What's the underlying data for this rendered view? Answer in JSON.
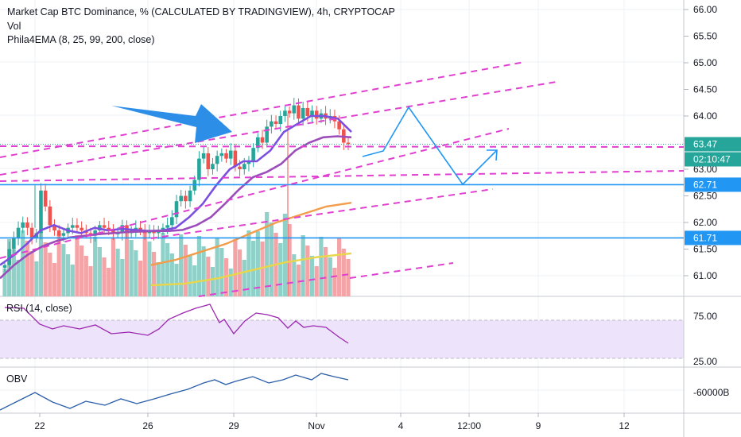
{
  "header": {
    "title": "Market Cap BTC Dominance, % (CALCULATED BY TRADINGVIEW), 4h, CRYPTOCAP",
    "vol_label": "Vol",
    "ema_label": "Phila4EMA (8, 25, 99, 200, close)"
  },
  "panes": {
    "rsi_label": "RSI (14, close)",
    "obv_label": "OBV"
  },
  "price_scale": {
    "ticks": [
      "66.00",
      "65.50",
      "65.00",
      "64.50",
      "64.00",
      "63.00",
      "62.50",
      "62.00",
      "61.50",
      "61.00"
    ],
    "tags": [
      {
        "label": "63.47",
        "color": "#26a69a"
      },
      {
        "label": "02:10:47",
        "color": "#26a69a"
      },
      {
        "label": "62.71",
        "color": "#2196f3"
      },
      {
        "label": "61.71",
        "color": "#2196f3"
      }
    ]
  },
  "rsi_scale": {
    "ticks": [
      "75.00",
      "25.00"
    ]
  },
  "obv_scale": {
    "ticks": [
      "-60000B"
    ]
  },
  "time_axis": {
    "ticks": [
      "22",
      "26",
      "29",
      "Nov",
      "4",
      "12:00",
      "9",
      "12"
    ]
  },
  "chart_data": {
    "type": "candlestick",
    "timeframe": "4h",
    "symbol": "CRYPTOCAP",
    "price_range": [
      60.75,
      66.15
    ],
    "close_series": [
      61.2,
      61.5,
      61.7,
      61.9,
      62.0,
      61.9,
      61.7,
      61.8,
      62.6,
      62.3,
      61.95,
      61.85,
      61.75,
      61.8,
      61.9,
      61.95,
      61.9,
      61.85,
      61.8,
      61.75,
      61.85,
      61.95,
      61.9,
      61.85,
      61.8,
      61.8,
      61.95,
      61.8,
      61.85,
      61.9,
      61.85,
      61.8,
      61.85,
      61.8,
      61.85,
      61.9,
      61.95,
      62.1,
      62.4,
      62.5,
      62.4,
      62.6,
      62.8,
      63.2,
      63.3,
      63.0,
      63.1,
      63.25,
      63.3,
      63.2,
      63.35,
      63.05,
      63.0,
      63.1,
      63.15,
      63.4,
      63.6,
      63.5,
      63.8,
      63.9,
      63.85,
      64.0,
      64.1,
      64.05,
      64.2,
      63.95,
      64.15,
      64.0,
      64.1,
      63.95,
      64.05,
      63.95,
      64.0,
      63.9,
      63.75,
      63.5,
      63.47
    ],
    "emas": [
      {
        "period": 8,
        "color": "#7b4fe0",
        "values": [
          61.2,
          61.38,
          61.6,
          61.85,
          61.95,
          61.85,
          61.8,
          61.9,
          61.85,
          61.88,
          61.86,
          61.84,
          61.85,
          61.9,
          62.1,
          62.35,
          62.7,
          63.0,
          63.15,
          63.15,
          63.35,
          63.7,
          63.85,
          64.0,
          64.0,
          63.95,
          63.7
        ]
      },
      {
        "period": 25,
        "color": "#9c4dba",
        "values": [
          60.95,
          61.2,
          61.4,
          61.55,
          61.65,
          61.72,
          61.75,
          61.78,
          61.8,
          61.82,
          61.83,
          61.84,
          61.84,
          61.86,
          61.95,
          62.1,
          62.35,
          62.62,
          62.85,
          62.95,
          63.1,
          63.35,
          63.5,
          63.6,
          63.62,
          63.6
        ]
      },
      {
        "period": 99,
        "color": "#f39c4a",
        "values": [
          61.2,
          61.3,
          61.45,
          61.6,
          61.8,
          62.0,
          62.15,
          62.3,
          62.37
        ]
      },
      {
        "period": 200,
        "color": "#e8d64c",
        "values": [
          60.82,
          60.85,
          60.95,
          61.1,
          61.25,
          61.35,
          61.42
        ]
      }
    ],
    "horizontal_levels": [
      62.71,
      61.71
    ],
    "current_price": 63.47,
    "projected_path": [
      63.3,
      63.35,
      64.15,
      62.73,
      63.32
    ]
  }
}
